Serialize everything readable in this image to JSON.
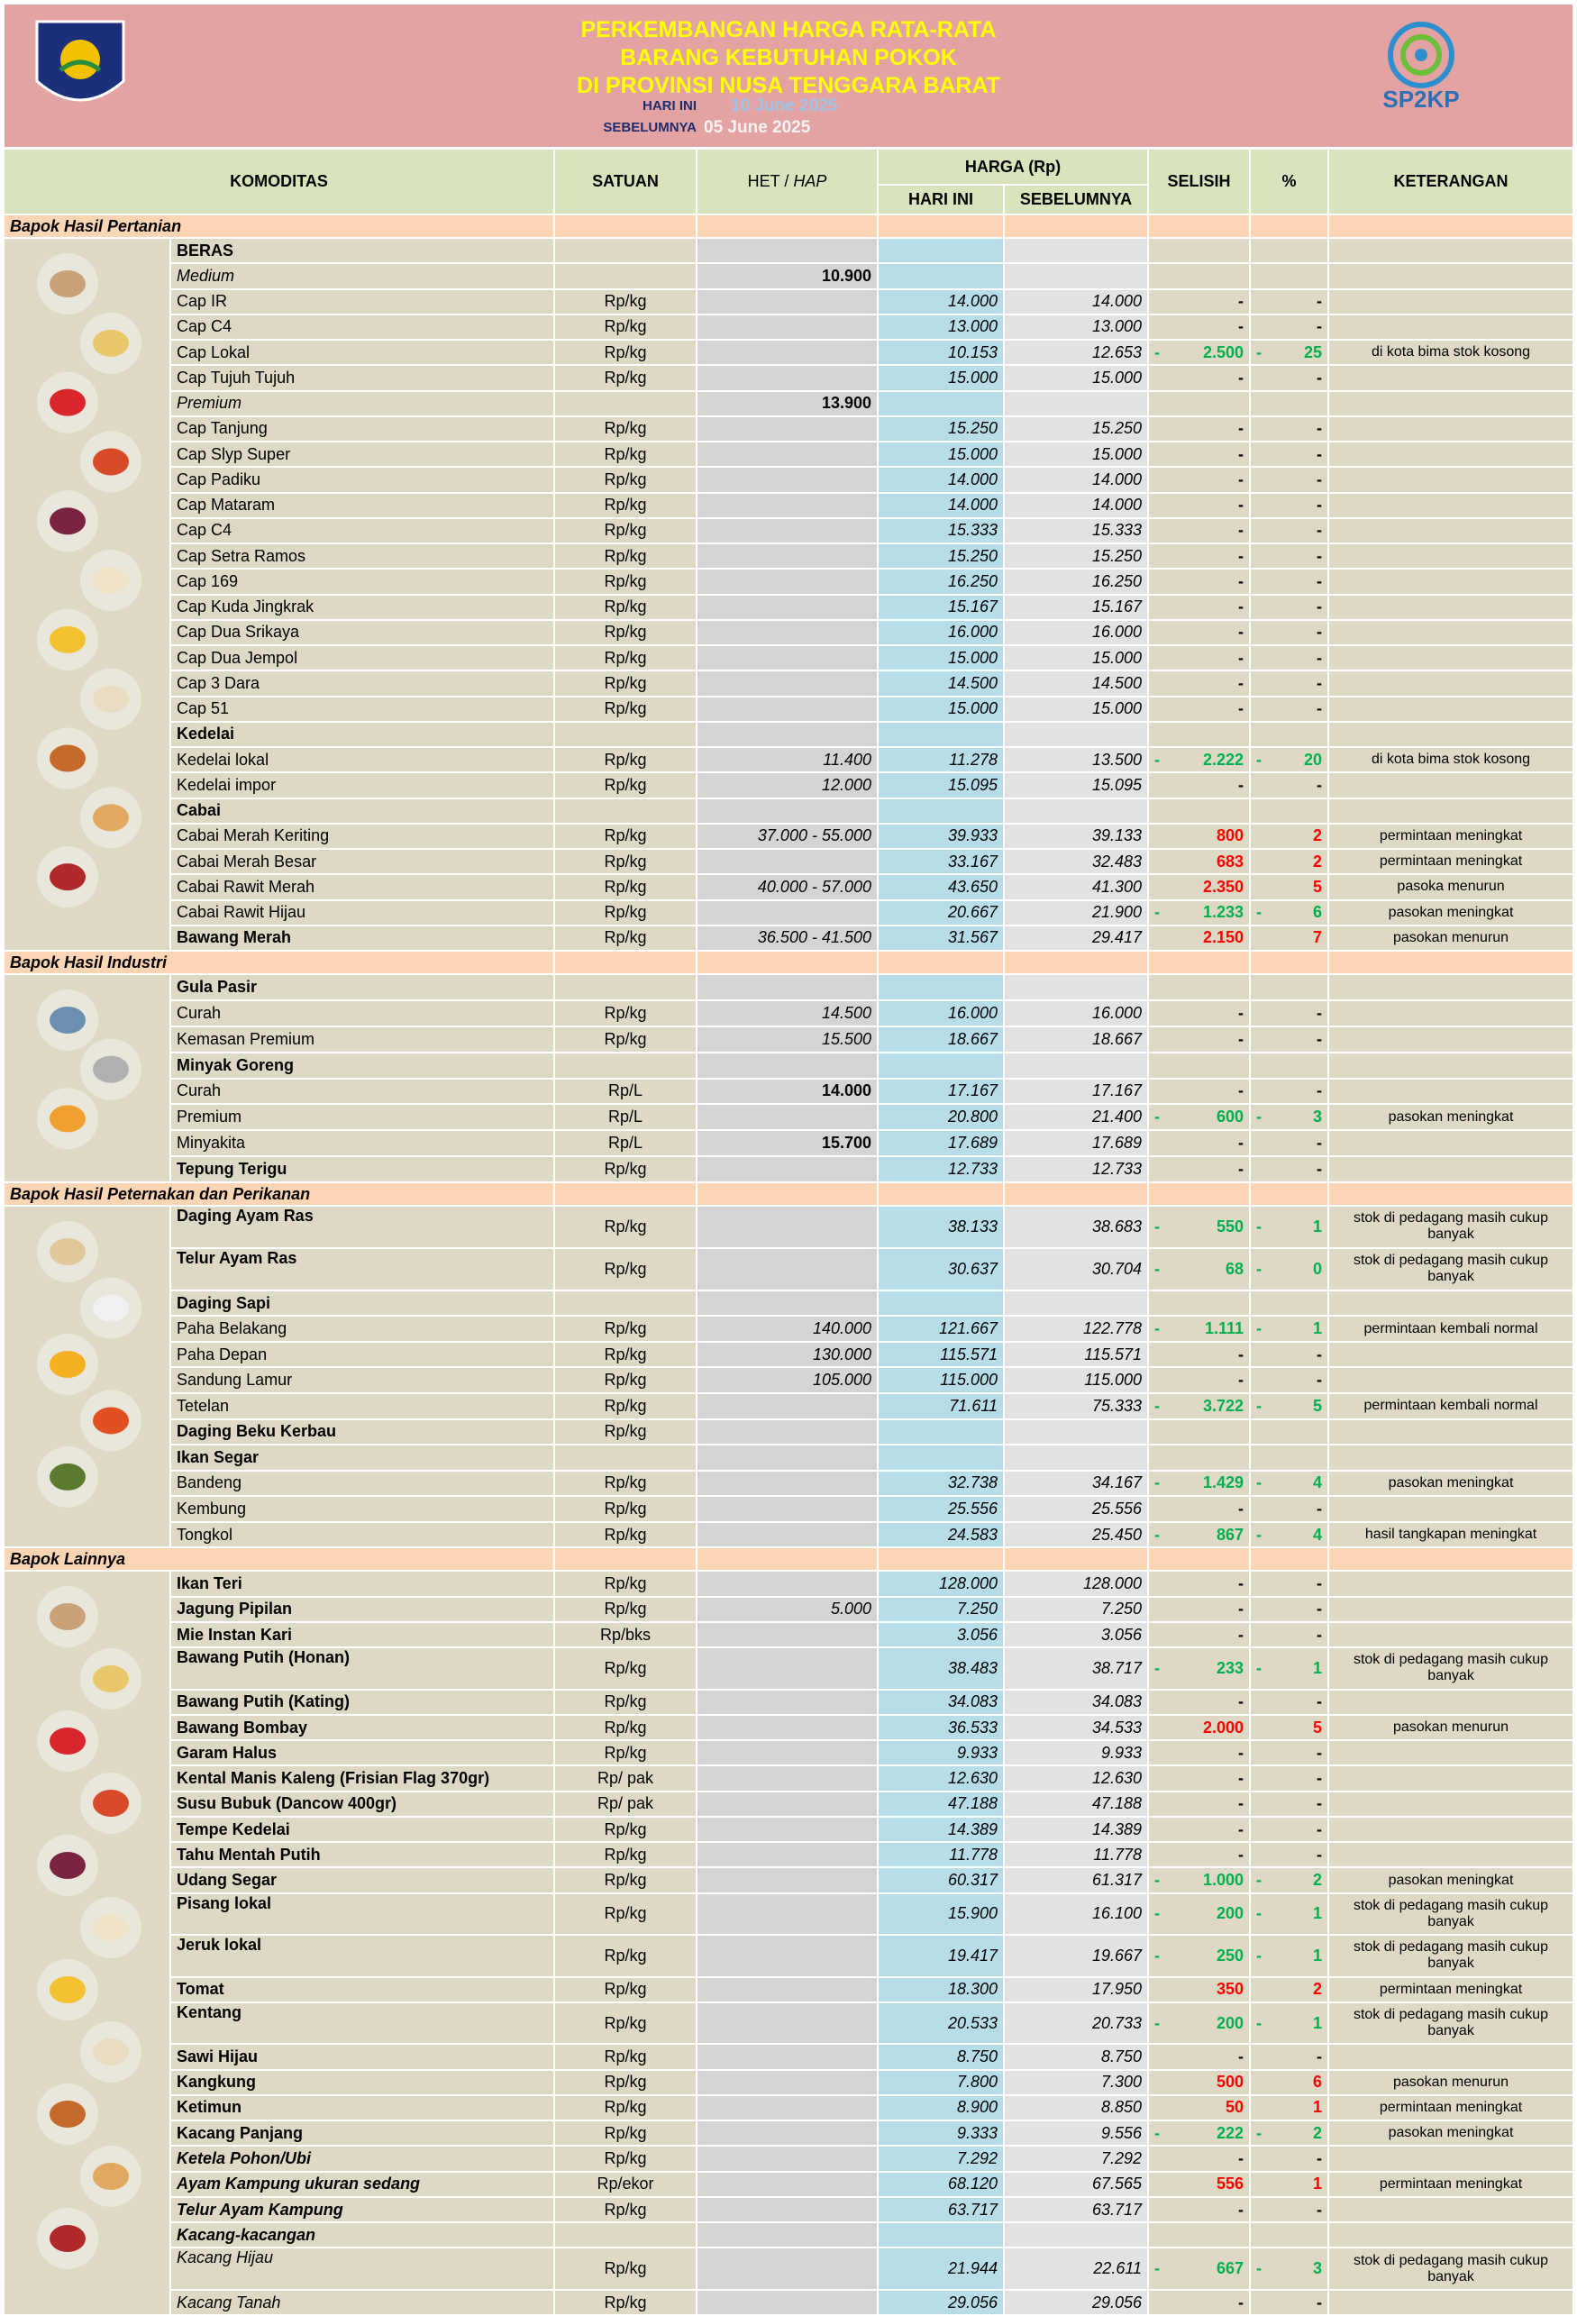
{
  "header": {
    "title_lines": [
      "PERKEMBANGAN HARGA RATA-RATA",
      "BARANG KEBUTUHAN POKOK",
      "DI PROVINSI NUSA TENGGARA BARAT"
    ],
    "today_label": "HARI INI",
    "today": "10 June 2025",
    "prev_label": "SEBELUMNYA",
    "prev": "05 June 2025",
    "logo_text": "SP2KP"
  },
  "columns": {
    "komoditas": "KOMODITAS",
    "satuan": "SATUAN",
    "het": "HET /",
    "hap": "HAP",
    "harga": "HARGA (Rp)",
    "hari_ini": "HARI INI",
    "sebelumnya": "SEBELUMNYA",
    "selisih": "SELISIH",
    "persen": "%",
    "keterangan": "KETERANGAN"
  },
  "sections": [
    {
      "title": "Bapok Hasil Pertanian",
      "rows": [
        {
          "n": "BERAS",
          "s": "b"
        },
        {
          "n": "Medium",
          "s": "i",
          "h": "10.900",
          "hb": true
        },
        {
          "n": "Cap IR",
          "u": "Rp/kg",
          "a": "14.000",
          "b": "14.000",
          "d": "-",
          "p": "-"
        },
        {
          "n": "Cap C4",
          "u": "Rp/kg",
          "a": "13.000",
          "b": "13.000",
          "d": "-",
          "p": "-"
        },
        {
          "n": "Cap Lokal",
          "u": "Rp/kg",
          "a": "10.153",
          "b": "12.653",
          "d": [
            "-",
            "2.500"
          ],
          "p": [
            "-",
            "25"
          ],
          "k": "di kota bima stok kosong"
        },
        {
          "n": "Cap Tujuh Tujuh",
          "u": "Rp/kg",
          "a": "15.000",
          "b": "15.000",
          "d": "-",
          "p": "-"
        },
        {
          "n": "Premium",
          "s": "i",
          "h": "13.900",
          "hb": true
        },
        {
          "n": "Cap Tanjung",
          "u": "Rp/kg",
          "a": "15.250",
          "b": "15.250",
          "d": "-",
          "p": "-"
        },
        {
          "n": "Cap Slyp Super",
          "u": "Rp/kg",
          "a": "15.000",
          "b": "15.000",
          "d": "-",
          "p": "-"
        },
        {
          "n": "Cap Padiku",
          "u": "Rp/kg",
          "a": "14.000",
          "b": "14.000",
          "d": "-",
          "p": "-"
        },
        {
          "n": "Cap Mataram",
          "u": "Rp/kg",
          "a": "14.000",
          "b": "14.000",
          "d": "-",
          "p": "-"
        },
        {
          "n": "Cap C4",
          "u": "Rp/kg",
          "a": "15.333",
          "b": "15.333",
          "d": "-",
          "p": "-"
        },
        {
          "n": "Cap Setra Ramos",
          "u": "Rp/kg",
          "a": "15.250",
          "b": "15.250",
          "d": "-",
          "p": "-"
        },
        {
          "n": "Cap 169",
          "u": "Rp/kg",
          "a": "16.250",
          "b": "16.250",
          "d": "-",
          "p": "-"
        },
        {
          "n": "Cap Kuda Jingkrak",
          "u": "Rp/kg",
          "a": "15.167",
          "b": "15.167",
          "d": "-",
          "p": "-"
        },
        {
          "n": "Cap Dua Srikaya",
          "u": "Rp/kg",
          "a": "16.000",
          "b": "16.000",
          "d": "-",
          "p": "-"
        },
        {
          "n": "Cap Dua Jempol",
          "u": "Rp/kg",
          "a": "15.000",
          "b": "15.000",
          "d": "-",
          "p": "-"
        },
        {
          "n": "Cap 3 Dara",
          "u": "Rp/kg",
          "a": "14.500",
          "b": "14.500",
          "d": "-",
          "p": "-"
        },
        {
          "n": "Cap 51",
          "u": "Rp/kg",
          "a": "15.000",
          "b": "15.000",
          "d": "-",
          "p": "-"
        },
        {
          "n": "Kedelai",
          "s": "b"
        },
        {
          "n": "Kedelai lokal",
          "u": "Rp/kg",
          "h": "11.400",
          "a": "11.278",
          "b": "13.500",
          "d": [
            "-",
            "2.222"
          ],
          "p": [
            "-",
            "20"
          ],
          "k": "di kota bima stok kosong"
        },
        {
          "n": "Kedelai impor",
          "u": "Rp/kg",
          "h": "12.000",
          "a": "15.095",
          "b": "15.095",
          "d": "-",
          "p": "-"
        },
        {
          "n": "Cabai",
          "s": "b"
        },
        {
          "n": "Cabai Merah Keriting",
          "u": "Rp/kg",
          "h": "37.000 - 55.000",
          "a": "39.933",
          "b": "39.133",
          "d": "800",
          "p": "2",
          "k": "permintaan meningkat"
        },
        {
          "n": "Cabai Merah Besar",
          "u": "Rp/kg",
          "a": "33.167",
          "b": "32.483",
          "d": "683",
          "p": "2",
          "k": "permintaan meningkat"
        },
        {
          "n": "Cabai Rawit Merah",
          "u": "Rp/kg",
          "h": "40.000 - 57.000",
          "a": "43.650",
          "b": "41.300",
          "d": "2.350",
          "p": "5",
          "k": "pasoka menurun"
        },
        {
          "n": "Cabai Rawit Hijau",
          "u": "Rp/kg",
          "a": "20.667",
          "b": "21.900",
          "d": [
            "-",
            "1.233"
          ],
          "p": [
            "-",
            "6"
          ],
          "k": "pasokan meningkat"
        },
        {
          "n": "Bawang Merah",
          "s": "b",
          "u": "Rp/kg",
          "h": "36.500 - 41.500",
          "a": "31.567",
          "b": "29.417",
          "d": "2.150",
          "p": "7",
          "k": "pasokan menurun"
        }
      ]
    },
    {
      "title": "Bapok Hasil Industri",
      "rows": [
        {
          "n": "Gula Pasir",
          "s": "b"
        },
        {
          "n": "Curah",
          "u": "Rp/kg",
          "h": "14.500",
          "a": "16.000",
          "b": "16.000",
          "d": "-",
          "p": "-"
        },
        {
          "n": "Kemasan Premium",
          "u": "Rp/kg",
          "h": "15.500",
          "a": "18.667",
          "b": "18.667",
          "d": "-",
          "p": "-"
        },
        {
          "n": "Minyak Goreng",
          "s": "b"
        },
        {
          "n": "Curah",
          "u": "Rp/L",
          "h": "14.000",
          "hb": true,
          "a": "17.167",
          "b": "17.167",
          "d": "-",
          "p": "-"
        },
        {
          "n": "Premium",
          "u": "Rp/L",
          "a": "20.800",
          "b": "21.400",
          "d": [
            "-",
            "600"
          ],
          "p": [
            "-",
            "3"
          ],
          "k": "pasokan meningkat"
        },
        {
          "n": "Minyakita",
          "u": "Rp/L",
          "h": "15.700",
          "hb": true,
          "a": "17.689",
          "b": "17.689",
          "d": "-",
          "p": "-"
        },
        {
          "n": "Tepung Terigu",
          "s": "b",
          "u": "Rp/kg",
          "a": "12.733",
          "b": "12.733",
          "d": "-",
          "p": "-"
        }
      ]
    },
    {
      "title": "Bapok Hasil Peternakan dan Perikanan",
      "rows": [
        {
          "n": "Daging Ayam Ras",
          "s": "b",
          "t": true,
          "u": "Rp/kg",
          "a": "38.133",
          "b": "38.683",
          "d": [
            "-",
            "550"
          ],
          "p": [
            "-",
            "1"
          ],
          "k": "stok di pedagang masih cukup banyak"
        },
        {
          "n": "Telur Ayam Ras",
          "s": "b",
          "t": true,
          "u": "Rp/kg",
          "a": "30.637",
          "b": "30.704",
          "d": [
            "-",
            "68"
          ],
          "p": [
            "-",
            "0"
          ],
          "k": "stok di pedagang masih cukup banyak"
        },
        {
          "n": "Daging Sapi",
          "s": "b"
        },
        {
          "n": "Paha Belakang",
          "u": "Rp/kg",
          "h": "140.000",
          "a": "121.667",
          "b": "122.778",
          "d": [
            "-",
            "1.111"
          ],
          "p": [
            "-",
            "1"
          ],
          "k": "permintaan kembali normal"
        },
        {
          "n": "Paha Depan",
          "u": "Rp/kg",
          "h": "130.000",
          "a": "115.571",
          "b": "115.571",
          "d": "-",
          "p": "-"
        },
        {
          "n": "Sandung Lamur",
          "u": "Rp/kg",
          "h": "105.000",
          "a": "115.000",
          "b": "115.000",
          "d": "-",
          "p": "-"
        },
        {
          "n": "Tetelan",
          "u": "Rp/kg",
          "a": "71.611",
          "b": "75.333",
          "d": [
            "-",
            "3.722"
          ],
          "p": [
            "-",
            "5"
          ],
          "k": "permintaan kembali normal"
        },
        {
          "n": "Daging Beku Kerbau",
          "s": "b",
          "u": "Rp/kg"
        },
        {
          "n": "Ikan Segar",
          "s": "b"
        },
        {
          "n": "Bandeng",
          "u": "Rp/kg",
          "a": "32.738",
          "b": "34.167",
          "d": [
            "-",
            "1.429"
          ],
          "p": [
            "-",
            "4"
          ],
          "k": "pasokan meningkat"
        },
        {
          "n": "Kembung",
          "u": "Rp/kg",
          "a": "25.556",
          "b": "25.556",
          "d": "-",
          "p": "-"
        },
        {
          "n": "Tongkol",
          "u": "Rp/kg",
          "a": "24.583",
          "b": "25.450",
          "d": [
            "-",
            "867"
          ],
          "p": [
            "-",
            "4"
          ],
          "k": "hasil tangkapan meningkat"
        }
      ]
    },
    {
      "title": "Bapok Lainnya",
      "rows": [
        {
          "n": "Ikan Teri",
          "s": "b",
          "u": "Rp/kg",
          "a": "128.000",
          "b": "128.000",
          "d": "-",
          "p": "-"
        },
        {
          "n": "Jagung Pipilan",
          "s": "b",
          "u": "Rp/kg",
          "h": "5.000",
          "a": "7.250",
          "b": "7.250",
          "d": "-",
          "p": "-"
        },
        {
          "n": "Mie Instan Kari",
          "s": "b",
          "u": "Rp/bks",
          "a": "3.056",
          "b": "3.056",
          "d": "-",
          "p": "-"
        },
        {
          "n": "Bawang Putih (Honan)",
          "s": "b",
          "t": true,
          "u": "Rp/kg",
          "a": "38.483",
          "b": "38.717",
          "d": [
            "-",
            "233"
          ],
          "p": [
            "-",
            "1"
          ],
          "k": "stok di pedagang masih cukup banyak"
        },
        {
          "n": "Bawang Putih (Kating)",
          "s": "b",
          "u": "Rp/kg",
          "a": "34.083",
          "b": "34.083",
          "d": "-",
          "p": "-"
        },
        {
          "n": "Bawang Bombay",
          "s": "b",
          "u": "Rp/kg",
          "a": "36.533",
          "b": "34.533",
          "d": "2.000",
          "p": "5",
          "k": "pasokan menurun"
        },
        {
          "n": "Garam Halus",
          "s": "b",
          "u": "Rp/kg",
          "a": "9.933",
          "b": "9.933",
          "d": "-",
          "p": "-"
        },
        {
          "n": "Kental Manis Kaleng (Frisian Flag 370gr)",
          "s": "b",
          "u": "Rp/ pak",
          "a": "12.630",
          "b": "12.630",
          "d": "-",
          "p": "-"
        },
        {
          "n": "Susu Bubuk (Dancow 400gr)",
          "s": "b",
          "u": "Rp/ pak",
          "a": "47.188",
          "b": "47.188",
          "d": "-",
          "p": "-"
        },
        {
          "n": "Tempe Kedelai",
          "s": "b",
          "u": "Rp/kg",
          "a": "14.389",
          "b": "14.389",
          "d": "-",
          "p": "-"
        },
        {
          "n": "Tahu Mentah Putih",
          "s": "b",
          "u": "Rp/kg",
          "a": "11.778",
          "b": "11.778",
          "d": "-",
          "p": "-"
        },
        {
          "n": "Udang Segar",
          "s": "b",
          "u": "Rp/kg",
          "a": "60.317",
          "b": "61.317",
          "d": [
            "-",
            "1.000"
          ],
          "p": [
            "-",
            "2"
          ],
          "k": "pasokan meningkat"
        },
        {
          "n": "Pisang lokal",
          "s": "b",
          "t": true,
          "u": "Rp/kg",
          "a": "15.900",
          "b": "16.100",
          "d": [
            "-",
            "200"
          ],
          "p": [
            "-",
            "1"
          ],
          "k": "stok di pedagang masih cukup banyak"
        },
        {
          "n": "Jeruk lokal",
          "s": "b",
          "t": true,
          "u": "Rp/kg",
          "a": "19.417",
          "b": "19.667",
          "d": [
            "-",
            "250"
          ],
          "p": [
            "-",
            "1"
          ],
          "k": "stok di pedagang masih cukup banyak"
        },
        {
          "n": "Tomat",
          "s": "b",
          "u": "Rp/kg",
          "a": "18.300",
          "b": "17.950",
          "d": "350",
          "p": "2",
          "k": "permintaan meningkat"
        },
        {
          "n": "Kentang",
          "s": "b",
          "t": true,
          "u": "Rp/kg",
          "a": "20.533",
          "b": "20.733",
          "d": [
            "-",
            "200"
          ],
          "p": [
            "-",
            "1"
          ],
          "k": "stok di pedagang masih cukup banyak"
        },
        {
          "n": "Sawi Hijau",
          "s": "b",
          "u": "Rp/kg",
          "a": "8.750",
          "b": "8.750",
          "d": "-",
          "p": "-"
        },
        {
          "n": "Kangkung",
          "s": "b",
          "u": "Rp/kg",
          "a": "7.800",
          "b": "7.300",
          "d": "500",
          "p": "6",
          "k": "pasokan menurun"
        },
        {
          "n": "Ketimun",
          "s": "b",
          "u": "Rp/kg",
          "a": "8.900",
          "b": "8.850",
          "d": "50",
          "p": "1",
          "k": "permintaan meningkat"
        },
        {
          "n": "Kacang Panjang",
          "s": "b",
          "u": "Rp/kg",
          "a": "9.333",
          "b": "9.556",
          "d": [
            "-",
            "222"
          ],
          "p": [
            "-",
            "2"
          ],
          "k": "pasokan meningkat"
        },
        {
          "n": "Ketela Pohon/Ubi",
          "s": "bi",
          "u": "Rp/kg",
          "a": "7.292",
          "b": "7.292",
          "d": "-",
          "p": "-"
        },
        {
          "n": "Ayam Kampung ukuran sedang",
          "s": "bi",
          "u": "Rp/ekor",
          "a": "68.120",
          "b": "67.565",
          "d": "556",
          "p": "1",
          "k": "permintaan meningkat"
        },
        {
          "n": "Telur Ayam Kampung",
          "s": "bi",
          "u": "Rp/kg",
          "a": "63.717",
          "b": "63.717",
          "d": "-",
          "p": "-"
        },
        {
          "n": "Kacang-kacangan",
          "s": "bi"
        },
        {
          "n": "Kacang Hijau",
          "s": "i",
          "t": true,
          "u": "Rp/kg",
          "a": "21.944",
          "b": "22.611",
          "d": [
            "-",
            "667"
          ],
          "p": [
            "-",
            "3"
          ],
          "k": "stok di pedagang masih cukup banyak"
        },
        {
          "n": "Kacang Tanah",
          "s": "i",
          "u": "Rp/kg",
          "a": "29.056",
          "b": "29.056",
          "d": "-",
          "p": "-"
        }
      ]
    }
  ]
}
